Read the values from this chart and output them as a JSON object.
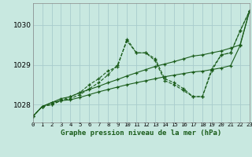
{
  "title": "Graphe pression niveau de la mer (hPa)",
  "bg_color": "#c8e8e0",
  "grid_color": "#a8cccc",
  "line_color": "#1a5c1a",
  "xlim": [
    0,
    23
  ],
  "ylim": [
    1027.55,
    1030.55
  ],
  "yticks": [
    1028,
    1029,
    1030
  ],
  "xtick_labels": [
    "0",
    "1",
    "2",
    "3",
    "4",
    "5",
    "6",
    "7",
    "8",
    "9",
    "10",
    "11",
    "12",
    "13",
    "14",
    "15",
    "16",
    "17",
    "18",
    "19",
    "20",
    "21",
    "22",
    "23"
  ],
  "series1": [
    1027.7,
    1027.95,
    1028.0,
    1028.1,
    1028.15,
    1028.25,
    1028.4,
    1028.55,
    1028.75,
    1029.0,
    1029.6,
    1029.3,
    1029.3,
    1029.15,
    1028.65,
    1028.55,
    1028.4,
    1028.2,
    1028.2,
    1028.9,
    1029.25,
    1029.3,
    1029.85,
    1030.35
  ],
  "series2": [
    1027.7,
    1027.95,
    1028.0,
    1028.1,
    1028.2,
    1028.3,
    1028.5,
    1028.65,
    1028.85,
    1028.95,
    1029.65,
    1029.3,
    1029.3,
    1029.1,
    1028.6,
    1028.5,
    1028.35,
    1028.2,
    1028.2,
    1028.85,
    1029.25,
    1029.3,
    1029.85,
    1030.35
  ],
  "series3": [
    1027.7,
    1027.95,
    1028.05,
    1028.15,
    1028.2,
    1028.3,
    1028.38,
    1028.46,
    1028.55,
    1028.63,
    1028.72,
    1028.8,
    1028.88,
    1028.96,
    1029.02,
    1029.08,
    1029.15,
    1029.22,
    1029.25,
    1029.3,
    1029.35,
    1029.42,
    1029.5,
    1030.35
  ],
  "series4": [
    1027.7,
    1027.95,
    1028.05,
    1028.1,
    1028.12,
    1028.18,
    1028.25,
    1028.32,
    1028.38,
    1028.44,
    1028.5,
    1028.55,
    1028.6,
    1028.65,
    1028.7,
    1028.74,
    1028.78,
    1028.82,
    1028.84,
    1028.88,
    1028.92,
    1028.98,
    1029.48,
    1030.35
  ]
}
